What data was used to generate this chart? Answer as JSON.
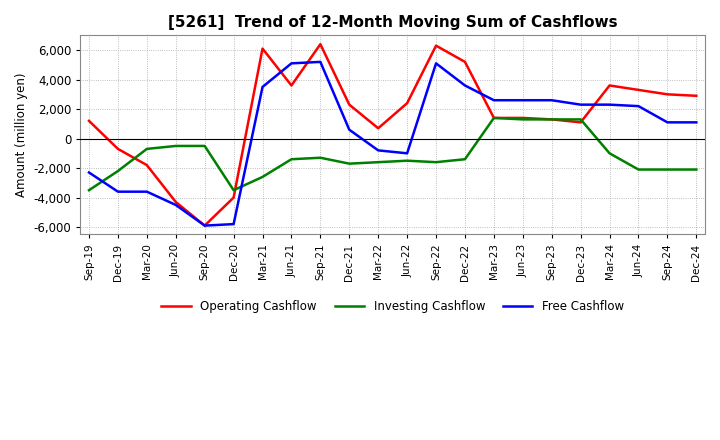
{
  "title": "[5261]  Trend of 12-Month Moving Sum of Cashflows",
  "ylabel": "Amount (million yen)",
  "ylim": [
    -6500,
    7000
  ],
  "yticks": [
    -6000,
    -4000,
    -2000,
    0,
    2000,
    4000,
    6000
  ],
  "x_labels": [
    "Sep-19",
    "Dec-19",
    "Mar-20",
    "Jun-20",
    "Sep-20",
    "Dec-20",
    "Mar-21",
    "Jun-21",
    "Sep-21",
    "Dec-21",
    "Mar-22",
    "Jun-22",
    "Sep-22",
    "Dec-22",
    "Mar-23",
    "Jun-23",
    "Sep-23",
    "Dec-23",
    "Mar-24",
    "Jun-24",
    "Sep-24",
    "Dec-24"
  ],
  "operating_cashflow": [
    1200,
    -700,
    -1800,
    -4300,
    -5900,
    -4000,
    6100,
    3600,
    6400,
    2300,
    700,
    2400,
    6300,
    5200,
    1400,
    1400,
    1300,
    1100,
    3600,
    3300,
    3000,
    2900
  ],
  "investing_cashflow": [
    -3500,
    -2200,
    -700,
    -500,
    -500,
    -3500,
    -2600,
    -1400,
    -1300,
    -1700,
    -1600,
    -1500,
    -1600,
    -1400,
    1400,
    1300,
    1300,
    1300,
    -1000,
    -2100,
    -2100,
    -2100
  ],
  "free_cashflow": [
    -2300,
    -3600,
    -3600,
    -4500,
    -5900,
    -5800,
    3500,
    5100,
    5200,
    600,
    -800,
    -1000,
    5100,
    3600,
    2600,
    2600,
    2600,
    2300,
    2300,
    2200,
    1100,
    1100
  ],
  "op_color": "#ff0000",
  "inv_color": "#008000",
  "free_color": "#0000ff",
  "legend_labels": [
    "Operating Cashflow",
    "Investing Cashflow",
    "Free Cashflow"
  ],
  "background_color": "#ffffff",
  "grid_color": "#aaaaaa"
}
